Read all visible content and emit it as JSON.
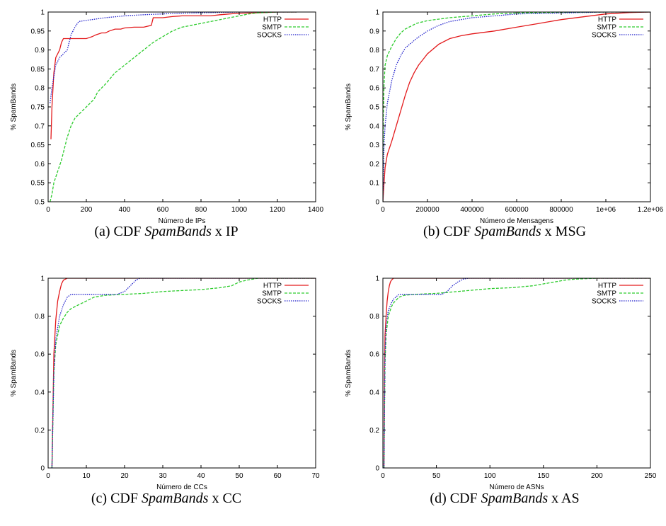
{
  "chart_data": [
    {
      "type": "line",
      "caption_prefix": "(a)  CDF ",
      "caption_italic": "SpamBands",
      "caption_suffix": " x IP",
      "xlabel": "Número de IPs",
      "ylabel": "% SpamBands",
      "xlim": [
        0,
        1400
      ],
      "ylim": [
        0.5,
        1
      ],
      "xticks": [
        "0",
        "200",
        "400",
        "600",
        "800",
        "1000",
        "1200",
        "1400"
      ],
      "xtick_values": [
        0,
        200,
        400,
        600,
        800,
        1000,
        1200,
        1400
      ],
      "yticks": [
        "0.5",
        "0.55",
        "0.6",
        "0.65",
        "0.7",
        "0.75",
        "0.8",
        "0.85",
        "0.9",
        "0.95",
        "1"
      ],
      "ytick_values": [
        0.5,
        0.55,
        0.6,
        0.65,
        0.7,
        0.75,
        0.8,
        0.85,
        0.9,
        0.95,
        1
      ],
      "legend_position": "top-right",
      "series": [
        {
          "name": "HTTP",
          "color": "#e31a1c",
          "dash": "solid",
          "x": [
            15,
            20,
            30,
            40,
            50,
            60,
            70,
            80,
            100,
            150,
            200,
            230,
            250,
            280,
            300,
            320,
            350,
            380,
            400,
            450,
            500,
            540,
            550,
            600,
            650,
            700,
            800,
            850,
            900,
            1000,
            1100,
            1200,
            1300
          ],
          "y": [
            0.665,
            0.75,
            0.84,
            0.88,
            0.89,
            0.9,
            0.92,
            0.93,
            0.93,
            0.93,
            0.93,
            0.935,
            0.94,
            0.945,
            0.945,
            0.95,
            0.955,
            0.955,
            0.958,
            0.96,
            0.96,
            0.965,
            0.985,
            0.985,
            0.988,
            0.99,
            0.99,
            0.99,
            0.993,
            0.997,
            0.998,
            1,
            1
          ]
        },
        {
          "name": "SMTP",
          "color": "#2ecc2e",
          "dash": "dashed",
          "x": [
            10,
            20,
            30,
            50,
            70,
            90,
            100,
            120,
            140,
            160,
            200,
            240,
            260,
            300,
            350,
            400,
            450,
            500,
            550,
            600,
            650,
            700,
            800,
            900,
            950,
            1000,
            1050,
            1100,
            1200,
            1300
          ],
          "y": [
            0.5,
            0.52,
            0.55,
            0.58,
            0.61,
            0.65,
            0.67,
            0.7,
            0.72,
            0.73,
            0.75,
            0.77,
            0.79,
            0.81,
            0.84,
            0.86,
            0.88,
            0.9,
            0.92,
            0.935,
            0.95,
            0.96,
            0.97,
            0.98,
            0.985,
            0.99,
            0.995,
            0.998,
            1,
            1
          ]
        },
        {
          "name": "SOCKS",
          "color": "#2222cc",
          "dash": "dotted",
          "x": [
            10,
            20,
            30,
            40,
            50,
            60,
            80,
            100,
            120,
            140,
            160,
            200,
            300,
            400,
            500,
            600,
            700,
            800,
            1000,
            1200,
            1300
          ],
          "y": [
            0.76,
            0.8,
            0.83,
            0.86,
            0.87,
            0.88,
            0.89,
            0.9,
            0.94,
            0.96,
            0.975,
            0.978,
            0.985,
            0.99,
            0.993,
            0.995,
            0.997,
            0.998,
            1,
            1,
            1
          ]
        }
      ]
    },
    {
      "type": "line",
      "caption_prefix": "(b)  CDF ",
      "caption_italic": "SpamBands",
      "caption_suffix": " x MSG",
      "xlabel": "Número de Mensagens",
      "ylabel": "% SpamBands",
      "xlim": [
        0,
        1200000
      ],
      "ylim": [
        0,
        1
      ],
      "xticks": [
        "0",
        "200000",
        "400000",
        "600000",
        "800000",
        "1e+06",
        "1.2e+06"
      ],
      "xtick_values": [
        0,
        200000,
        400000,
        600000,
        800000,
        1000000,
        1200000
      ],
      "yticks": [
        "0",
        "0.1",
        "0.2",
        "0.3",
        "0.4",
        "0.5",
        "0.6",
        "0.7",
        "0.8",
        "0.9",
        "1"
      ],
      "ytick_values": [
        0,
        0.1,
        0.2,
        0.3,
        0.4,
        0.5,
        0.6,
        0.7,
        0.8,
        0.9,
        1
      ],
      "legend_position": "top-right",
      "series": [
        {
          "name": "HTTP",
          "color": "#e31a1c",
          "dash": "solid",
          "x": [
            0,
            5000,
            10000,
            20000,
            40000,
            60000,
            80000,
            100000,
            120000,
            140000,
            160000,
            180000,
            200000,
            250000,
            300000,
            350000,
            400000,
            500000,
            600000,
            700000,
            800000,
            900000,
            1000000,
            1100000,
            1200000
          ],
          "y": [
            0,
            0.1,
            0.18,
            0.25,
            0.32,
            0.4,
            0.48,
            0.56,
            0.63,
            0.68,
            0.72,
            0.75,
            0.78,
            0.83,
            0.86,
            0.875,
            0.885,
            0.9,
            0.92,
            0.94,
            0.96,
            0.975,
            0.99,
            0.997,
            1
          ]
        },
        {
          "name": "SMTP",
          "color": "#2ecc2e",
          "dash": "dashed",
          "x": [
            0,
            2000,
            5000,
            10000,
            20000,
            40000,
            60000,
            80000,
            100000,
            150000,
            200000,
            300000,
            400000,
            500000,
            600000,
            800000,
            1000000,
            1200000
          ],
          "y": [
            0,
            0.45,
            0.62,
            0.72,
            0.77,
            0.82,
            0.86,
            0.89,
            0.91,
            0.94,
            0.955,
            0.97,
            0.98,
            0.99,
            0.995,
            0.998,
            1,
            1
          ]
        },
        {
          "name": "SOCKS",
          "color": "#2222cc",
          "dash": "dotted",
          "x": [
            0,
            5000,
            10000,
            20000,
            40000,
            60000,
            80000,
            100000,
            150000,
            200000,
            250000,
            300000,
            400000,
            500000,
            600000,
            800000,
            1000000,
            1200000
          ],
          "y": [
            0,
            0.3,
            0.4,
            0.52,
            0.64,
            0.72,
            0.77,
            0.81,
            0.86,
            0.9,
            0.93,
            0.95,
            0.97,
            0.98,
            0.99,
            0.995,
            1,
            1
          ]
        }
      ]
    },
    {
      "type": "line",
      "caption_prefix": "(c)  CDF ",
      "caption_italic": "SpamBands",
      "caption_suffix": " x CC",
      "xlabel": "Número de CCs",
      "ylabel": "% SpamBands",
      "xlim": [
        0,
        70
      ],
      "ylim": [
        0,
        1
      ],
      "xticks": [
        "0",
        "10",
        "20",
        "30",
        "40",
        "50",
        "60",
        "70"
      ],
      "xtick_values": [
        0,
        10,
        20,
        30,
        40,
        50,
        60,
        70
      ],
      "yticks": [
        "0",
        "0.2",
        "0.4",
        "0.6",
        "0.8",
        "1"
      ],
      "ytick_values": [
        0,
        0.2,
        0.4,
        0.6,
        0.8,
        1
      ],
      "legend_position": "top-right",
      "series": [
        {
          "name": "HTTP",
          "color": "#e31a1c",
          "dash": "solid",
          "x": [
            1,
            1.5,
            2,
            2.5,
            3,
            3.5,
            4,
            5,
            70
          ],
          "y": [
            0,
            0.6,
            0.78,
            0.88,
            0.93,
            0.97,
            0.99,
            1,
            1
          ]
        },
        {
          "name": "SMTP",
          "color": "#2ecc2e",
          "dash": "dashed",
          "x": [
            1,
            1.5,
            2,
            3,
            4,
            5,
            6,
            8,
            10,
            12,
            15,
            20,
            25,
            30,
            35,
            40,
            45,
            48,
            50,
            52,
            55,
            60,
            70
          ],
          "y": [
            0,
            0.5,
            0.65,
            0.75,
            0.79,
            0.82,
            0.84,
            0.86,
            0.88,
            0.9,
            0.91,
            0.915,
            0.92,
            0.93,
            0.935,
            0.94,
            0.95,
            0.96,
            0.98,
            0.99,
            1,
            1,
            1
          ]
        },
        {
          "name": "SOCKS",
          "color": "#2222cc",
          "dash": "dotted",
          "x": [
            1,
            1.5,
            2,
            3,
            4,
            5,
            6,
            7,
            10,
            15,
            18,
            20,
            21,
            22,
            23,
            24,
            70
          ],
          "y": [
            0,
            0.5,
            0.68,
            0.8,
            0.86,
            0.9,
            0.915,
            0.915,
            0.915,
            0.915,
            0.915,
            0.93,
            0.95,
            0.97,
            0.99,
            1,
            1
          ]
        }
      ]
    },
    {
      "type": "line",
      "caption_prefix": "(d)  CDF ",
      "caption_italic": "SpamBands",
      "caption_suffix": " x AS",
      "xlabel": "Número de ASNs",
      "ylabel": "% SpamBands",
      "xlim": [
        0,
        250
      ],
      "ylim": [
        0,
        1
      ],
      "xticks": [
        "0",
        "50",
        "100",
        "150",
        "200",
        "250"
      ],
      "xtick_values": [
        0,
        50,
        100,
        150,
        200,
        250
      ],
      "yticks": [
        "0",
        "0.2",
        "0.4",
        "0.6",
        "0.8",
        "1"
      ],
      "ytick_values": [
        0,
        0.2,
        0.4,
        0.6,
        0.8,
        1
      ],
      "legend_position": "top-right",
      "series": [
        {
          "name": "HTTP",
          "color": "#e31a1c",
          "dash": "solid",
          "x": [
            1,
            1.5,
            2,
            3,
            4,
            5,
            6,
            7,
            8,
            10,
            250
          ],
          "y": [
            0,
            0.5,
            0.7,
            0.8,
            0.88,
            0.93,
            0.96,
            0.98,
            0.99,
            1,
            1
          ]
        },
        {
          "name": "SMTP",
          "color": "#2ecc2e",
          "dash": "dashed",
          "x": [
            1,
            2,
            3,
            5,
            8,
            10,
            15,
            20,
            30,
            50,
            80,
            100,
            120,
            140,
            150,
            160,
            170,
            180,
            200,
            250
          ],
          "y": [
            0,
            0.55,
            0.7,
            0.8,
            0.85,
            0.87,
            0.9,
            0.91,
            0.915,
            0.92,
            0.935,
            0.945,
            0.95,
            0.96,
            0.97,
            0.98,
            0.99,
            0.995,
            1,
            1
          ]
        },
        {
          "name": "SOCKS",
          "color": "#2222cc",
          "dash": "dotted",
          "x": [
            1,
            2,
            3,
            5,
            8,
            10,
            12,
            15,
            20,
            40,
            55,
            60,
            65,
            70,
            75,
            80,
            250
          ],
          "y": [
            0,
            0.6,
            0.75,
            0.83,
            0.87,
            0.89,
            0.9,
            0.915,
            0.915,
            0.915,
            0.915,
            0.93,
            0.96,
            0.98,
            0.995,
            1,
            1
          ]
        }
      ]
    }
  ]
}
